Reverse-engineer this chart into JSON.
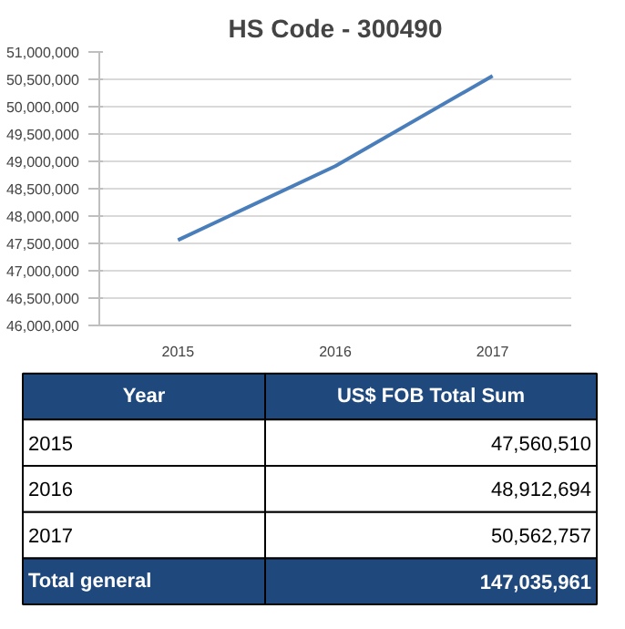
{
  "chart_data": [
    {
      "type": "line",
      "title": "HS Code - 300490",
      "categories": [
        "2015",
        "2016",
        "2017"
      ],
      "series": [
        {
          "color": "#4a7ebb",
          "values": [
            47560510,
            48912694,
            50562757
          ]
        }
      ],
      "ylim": [
        46000000,
        51000000
      ],
      "yticks": [
        {
          "value": 46000000,
          "label": "46,000,000"
        },
        {
          "value": 46500000,
          "label": "46,500,000"
        },
        {
          "value": 47000000,
          "label": "47,000,000"
        },
        {
          "value": 47500000,
          "label": "47,500,000"
        },
        {
          "value": 48000000,
          "label": "48,000,000"
        },
        {
          "value": 48500000,
          "label": "48,500,000"
        },
        {
          "value": 49000000,
          "label": "49,000,000"
        },
        {
          "value": 49500000,
          "label": "49,500,000"
        },
        {
          "value": 50000000,
          "label": "50,000,000"
        },
        {
          "value": 50500000,
          "label": "50,500,000"
        },
        {
          "value": 51000000,
          "label": "51,000,000"
        }
      ],
      "grid": "y",
      "marker": "none",
      "line_style": "solid"
    },
    {
      "type": "other",
      "annotations": [
        "Year",
        "US$ FOB Total Sum",
        "2015",
        "47,560,510",
        "2016",
        "48,912,694",
        "2017",
        "50,562,757",
        "Total general",
        "147,035,961"
      ]
    }
  ]
}
